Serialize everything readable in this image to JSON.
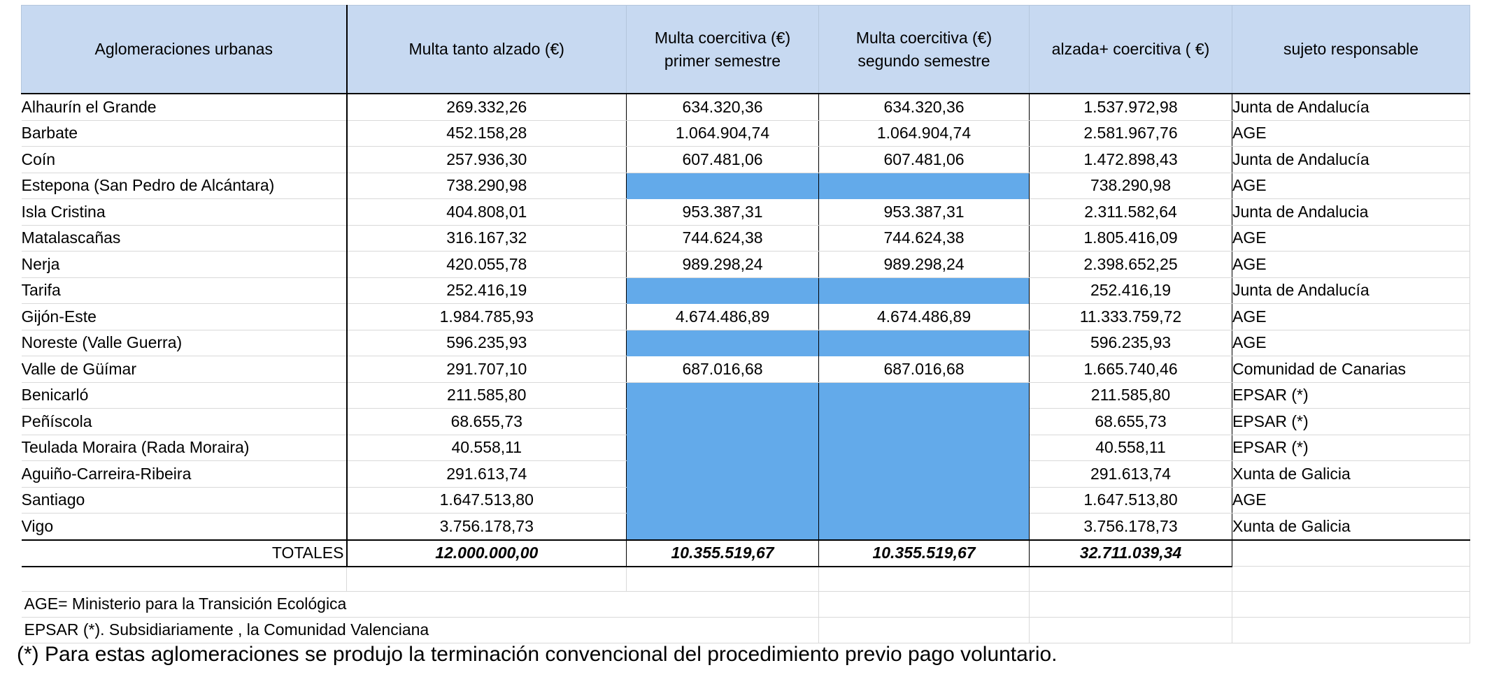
{
  "headers": [
    "Aglomeraciones urbanas",
    "Multa tanto alzado  (€)",
    "Multa coercitiva (€)\nprimer semestre",
    "Multa coercitiva (€)\nsegundo semestre",
    "alzada+ coercitiva ( €)",
    "sujeto responsable"
  ],
  "rows": [
    {
      "name": "Alhaurín el Grande",
      "alzado": "269.332,26",
      "s1": "634.320,36",
      "s2": "634.320,36",
      "total": "1.537.972,98",
      "sujeto": "Junta de Andalucía",
      "filled": false
    },
    {
      "name": "Barbate",
      "alzado": "452.158,28",
      "s1": "1.064.904,74",
      "s2": "1.064.904,74",
      "total": "2.581.967,76",
      "sujeto": "AGE",
      "filled": false
    },
    {
      "name": "Coín",
      "alzado": "257.936,30",
      "s1": "607.481,06",
      "s2": "607.481,06",
      "total": "1.472.898,43",
      "sujeto": "Junta de Andalucía",
      "filled": false
    },
    {
      "name": "Estepona (San Pedro de Alcántara)",
      "alzado": "738.290,98",
      "s1": "",
      "s2": "",
      "total": "738.290,98",
      "sujeto": "AGE",
      "filled": true
    },
    {
      "name": "Isla Cristina",
      "alzado": "404.808,01",
      "s1": "953.387,31",
      "s2": "953.387,31",
      "total": "2.311.582,64",
      "sujeto": "Junta de Andalucia",
      "filled": false
    },
    {
      "name": "Matalascañas",
      "alzado": "316.167,32",
      "s1": "744.624,38",
      "s2": "744.624,38",
      "total": "1.805.416,09",
      "sujeto": "AGE",
      "filled": false
    },
    {
      "name": "Nerja",
      "alzado": "420.055,78",
      "s1": "989.298,24",
      "s2": "989.298,24",
      "total": "2.398.652,25",
      "sujeto": "AGE",
      "filled": false
    },
    {
      "name": "Tarifa",
      "alzado": "252.416,19",
      "s1": "",
      "s2": "",
      "total": "252.416,19",
      "sujeto": "Junta de Andalucía",
      "filled": true
    },
    {
      "name": "Gijón-Este",
      "alzado": "1.984.785,93",
      "s1": "4.674.486,89",
      "s2": "4.674.486,89",
      "total": "11.333.759,72",
      "sujeto": "AGE",
      "filled": false
    },
    {
      "name": "Noreste (Valle Guerra)",
      "alzado": "596.235,93",
      "s1": "",
      "s2": "",
      "total": "596.235,93",
      "sujeto": "AGE",
      "filled": true
    },
    {
      "name": "Valle de Güímar",
      "alzado": "291.707,10",
      "s1": "687.016,68",
      "s2": "687.016,68",
      "total": "1.665.740,46",
      "sujeto": "Comunidad de Canarias",
      "filled": false
    },
    {
      "name": "Benicarló",
      "alzado": "211.585,80",
      "s1": "",
      "s2": "",
      "total": "211.585,80",
      "sujeto": "EPSAR (*)",
      "filled": true
    },
    {
      "name": "Peñíscola",
      "alzado": "68.655,73",
      "s1": "",
      "s2": "",
      "total": "68.655,73",
      "sujeto": "EPSAR (*)",
      "filled": true
    },
    {
      "name": "Teulada Moraira (Rada Moraira)",
      "alzado": "40.558,11",
      "s1": "",
      "s2": "",
      "total": "40.558,11",
      "sujeto": "EPSAR (*)",
      "filled": true
    },
    {
      "name": "Aguiño-Carreira-Ribeira",
      "alzado": "291.613,74",
      "s1": "",
      "s2": "",
      "total": "291.613,74",
      "sujeto": "Xunta de Galicia",
      "filled": true
    },
    {
      "name": "Santiago",
      "alzado": "1.647.513,80",
      "s1": "",
      "s2": "",
      "total": "1.647.513,80",
      "sujeto": "AGE",
      "filled": true
    },
    {
      "name": "Vigo",
      "alzado": "3.756.178,73",
      "s1": "",
      "s2": "",
      "total": "3.756.178,73",
      "sujeto": "Xunta de Galicia",
      "filled": true
    }
  ],
  "totals": {
    "label": "TOTALES",
    "alzado": "12.000.000,00",
    "s1": "10.355.519,67",
    "s2": "10.355.519,67",
    "total": "32.711.039,34"
  },
  "notes": [
    "AGE= Ministerio para la Transición Ecológica",
    "EPSAR (*). Subsidiariamente , la Comunidad Valenciana"
  ],
  "footnote": "(*) Para estas aglomeraciones se produjo la terminación convencional del procedimiento previo pago voluntario.",
  "colors": {
    "header_bg": "#c7d9f1",
    "filled_cell": "#63aaea"
  }
}
